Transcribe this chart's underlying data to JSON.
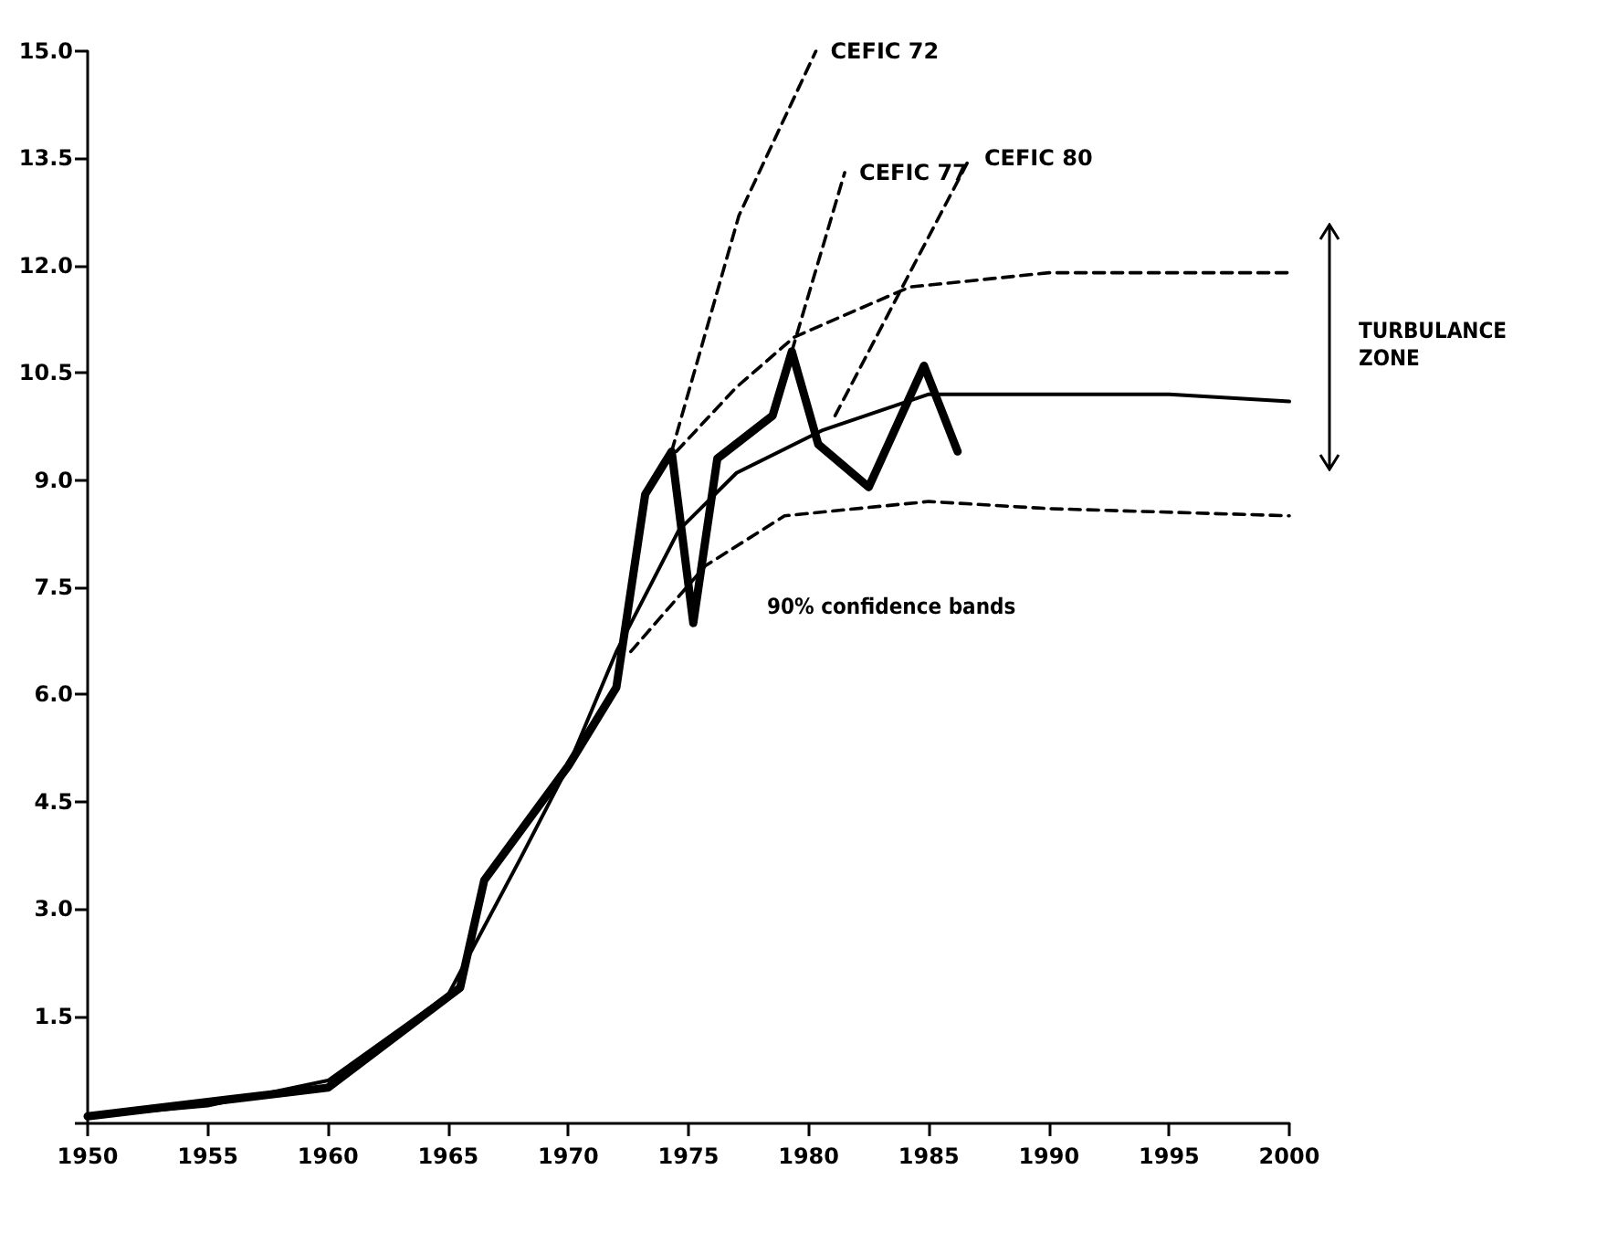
{
  "chart_data": {
    "type": "line",
    "xlim": [
      1950,
      2000
    ],
    "xticks": [
      1950,
      1955,
      1960,
      1965,
      1970,
      1975,
      1980,
      1985,
      1990,
      1995,
      2000
    ],
    "ylim": [
      0,
      15
    ],
    "yticks": [
      {
        "value": 0,
        "label": null
      },
      1.5,
      {
        "value": 3,
        "label": "3.0"
      },
      4.5,
      {
        "value": 6,
        "label": "6.0"
      },
      7.5,
      {
        "value": 9,
        "label": "9.0"
      },
      10.5,
      {
        "value": 12,
        "label": "12.0"
      },
      13.5,
      {
        "value": 15,
        "label": "15.0"
      }
    ],
    "grid": false,
    "legend": false,
    "marker": "none",
    "series": [
      {
        "color": "#000000",
        "line_style": "solid",
        "x": [
          1950,
          1955,
          1960,
          1965.5,
          1966.5,
          1970,
          1972,
          1973.2,
          1974.3,
          1975.2,
          1976.2,
          1978.5,
          1979.3,
          1980.4,
          1982.5,
          1984.8,
          1986.2
        ],
        "values": [
          0.1,
          0.3,
          0.5,
          1.9,
          3.4,
          5.0,
          6.1,
          8.8,
          9.4,
          7.0,
          9.3,
          9.9,
          10.8,
          9.5,
          8.9,
          10.6,
          9.4
        ]
      },
      {
        "color": "#000000",
        "line_style": "solid",
        "x": [
          1950,
          1955,
          1960,
          1965,
          1968,
          1970,
          1972,
          1974.6,
          1977,
          1980.6,
          1985,
          1990,
          1995,
          2000
        ],
        "values": [
          0.1,
          0.25,
          0.6,
          1.8,
          3.7,
          5.0,
          6.6,
          8.3,
          9.1,
          9.7,
          10.2,
          10.2,
          10.2,
          10.1
        ]
      },
      {
        "color": "#000000",
        "line_style": "dashed",
        "x": [
          1974.5,
          1977,
          1979.4,
          1984.2,
          1990,
          2000
        ],
        "values": [
          9.4,
          10.3,
          11.0,
          11.7,
          11.9,
          11.9
        ]
      },
      {
        "color": "#000000",
        "line_style": "dashed",
        "x": [
          1972.6,
          1975.7,
          1979,
          1985,
          1990,
          2000
        ],
        "values": [
          6.6,
          7.8,
          8.5,
          8.7,
          8.6,
          8.5
        ]
      },
      {
        "name": "CEFIC 72",
        "color": "#000000",
        "line_style": "dashed",
        "x": [
          1974.3,
          1977.1,
          1980.3
        ],
        "values": [
          9.4,
          12.7,
          15.0
        ]
      },
      {
        "name": "CEFIC 77",
        "color": "#000000",
        "line_style": "dashed",
        "x": [
          1979.3,
          1981.5
        ],
        "values": [
          10.8,
          13.3
        ]
      },
      {
        "name": "CEFIC 80",
        "color": "#000000",
        "line_style": "dashed",
        "x": [
          1981.1,
          1986.7
        ],
        "values": [
          9.9,
          13.5
        ]
      }
    ],
    "annotations": [
      "90% confidence bands",
      "TURBULANCE ZONE"
    ]
  }
}
